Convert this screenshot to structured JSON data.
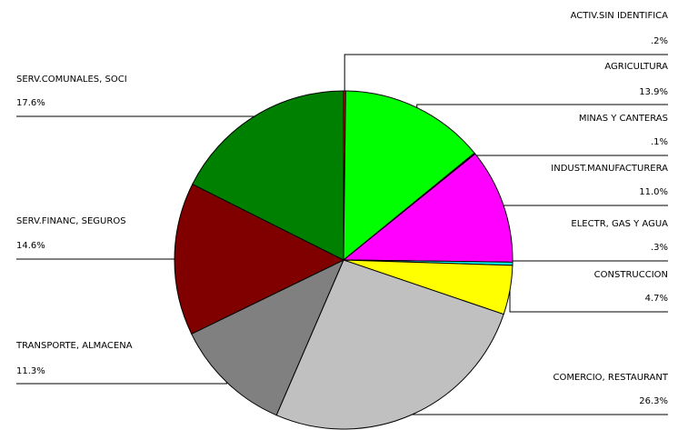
{
  "chart_data": {
    "type": "pie",
    "categories": [
      "ACTIV.SIN IDENTIFICA",
      "AGRICULTURA",
      "MINAS Y CANTERAS",
      "INDUST.MANUFACTURERA",
      "ELECTR, GAS Y AGUA",
      "CONSTRUCCION",
      "COMERCIO, RESTAURANT",
      "TRANSPORTE, ALMACENA",
      "SERV.FINANC, SEGUROS",
      "SERV.COMUNALES, SOCI"
    ],
    "values": [
      0.2,
      13.9,
      0.1,
      11.0,
      0.3,
      4.7,
      26.3,
      11.3,
      14.6,
      17.6
    ],
    "value_labels": [
      ".2%",
      "13.9%",
      ".1%",
      "11.0%",
      ".3%",
      "4.7%",
      "26.3%",
      "11.3%",
      "14.6%",
      "17.6%"
    ],
    "colors": [
      "#ff0000",
      "#00ff00",
      "#008080",
      "#ff00ff",
      "#00ffff",
      "#ffff00",
      "#c0c0c0",
      "#808080",
      "#800000",
      "#008000"
    ]
  }
}
